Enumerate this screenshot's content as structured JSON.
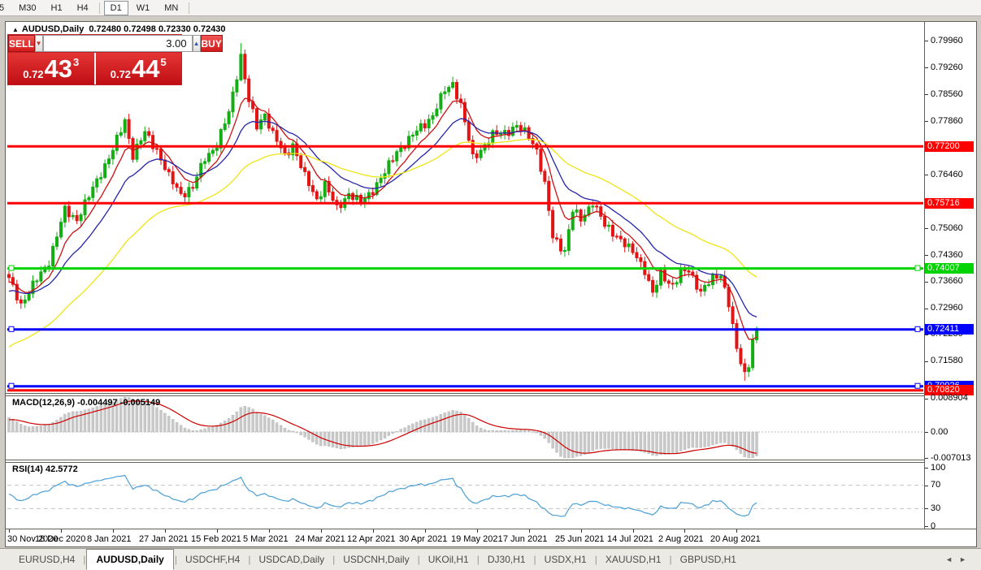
{
  "toolbar": {
    "periods": [
      {
        "label": "5",
        "active": false,
        "sep_after": false
      },
      {
        "label": "M30",
        "active": false,
        "sep_after": false
      },
      {
        "label": "H1",
        "active": false,
        "sep_after": false
      },
      {
        "label": "H4",
        "active": false,
        "sep_after": true
      },
      {
        "label": "D1",
        "active": true,
        "sep_after": false
      },
      {
        "label": "W1",
        "active": false,
        "sep_after": false
      },
      {
        "label": "MN",
        "active": false,
        "sep_after": true
      }
    ]
  },
  "chart": {
    "collapse_icon": "▲",
    "symbol_title": "AUDUSD,Daily",
    "ohlc": "0.72480 0.72498 0.72330 0.72430",
    "trade_panel": {
      "sell_label": "SELL",
      "buy_label": "BUY",
      "volume": "3.00",
      "volume_down_glyph": "▼",
      "volume_up_glyph": "▲",
      "sell_price": {
        "prefix": "0.72",
        "big": "43",
        "sup": "3"
      },
      "buy_price": {
        "prefix": "0.72",
        "big": "44",
        "sup": "5"
      }
    },
    "y_axis_ticks": [
      "0.79960",
      "0.79260",
      "0.78560",
      "0.77860",
      "0.76460",
      "0.75060",
      "0.74360",
      "0.73660",
      "0.72960",
      "0.72280",
      "0.71580"
    ],
    "levels": [
      {
        "label": "0.77200",
        "price": 0.772,
        "color": "#ff0000",
        "thickness": 3,
        "markers": false
      },
      {
        "label": "0.75716",
        "price": 0.75716,
        "color": "#ff0000",
        "thickness": 3,
        "markers": false
      },
      {
        "label": "0.74007",
        "price": 0.74007,
        "color": "#00d400",
        "thickness": 3,
        "markers": true
      },
      {
        "label": "0.72411",
        "price": 0.72411,
        "color": "#0000ff",
        "thickness": 3,
        "markers": true
      },
      {
        "label": "0.70926",
        "price": 0.70926,
        "color": "#0000ff",
        "thickness": 3,
        "markers": true
      },
      {
        "label": "0.70820",
        "price": 0.7082,
        "color": "#ff0000",
        "thickness": 3,
        "markers": false
      }
    ]
  },
  "macd": {
    "name": "MACD(12,26,9)",
    "value1": "-0.004497",
    "value2": "-0.005149",
    "ticks": [
      {
        "text": "0.008904",
        "value": 0.008904
      },
      {
        "text": "0.00",
        "value": 0
      },
      {
        "text": "-0.007013",
        "value": -0.007013
      }
    ]
  },
  "rsi": {
    "name": "RSI(14)",
    "value": "42.5772",
    "ticks": [
      {
        "text": "100",
        "value": 100
      },
      {
        "text": "70",
        "value": 70
      },
      {
        "text": "30",
        "value": 30
      },
      {
        "text": "0",
        "value": 0
      }
    ]
  },
  "x_axis": {
    "labels": [
      {
        "text": "30 Nov 2020",
        "index": 0
      },
      {
        "text": "18 Dec 2020",
        "index": 13
      },
      {
        "text": "8 Jan 2021",
        "index": 26
      },
      {
        "text": "27 Jan 2021",
        "index": 39
      },
      {
        "text": "15 Feb 2021",
        "index": 52
      },
      {
        "text": "5 Mar 2021",
        "index": 65
      },
      {
        "text": "24 Mar 2021",
        "index": 78
      },
      {
        "text": "12 Apr 2021",
        "index": 91
      },
      {
        "text": "30 Apr 2021",
        "index": 104
      },
      {
        "text": "19 May 2021",
        "index": 117
      },
      {
        "text": "7 Jun 2021",
        "index": 130
      },
      {
        "text": "25 Jun 2021",
        "index": 143
      },
      {
        "text": "14 Jul 2021",
        "index": 156
      },
      {
        "text": "2 Aug 2021",
        "index": 169
      },
      {
        "text": "20 Aug 2021",
        "index": 182
      }
    ]
  },
  "tabs": {
    "separator": "|",
    "nav_left": "◄",
    "nav_right": "►",
    "items": [
      {
        "label": "EURUSD,H4",
        "active": false
      },
      {
        "label": "AUDUSD,Daily",
        "active": true
      },
      {
        "label": "USDCHF,H4",
        "active": false
      },
      {
        "label": "USDCAD,Daily",
        "active": false
      },
      {
        "label": "USDCNH,Daily",
        "active": false
      },
      {
        "label": "UKOil,H1",
        "active": false
      },
      {
        "label": "DJ30,H1",
        "active": false
      },
      {
        "label": "USDX,H1",
        "active": false
      },
      {
        "label": "XAUUSD,H1",
        "active": false
      },
      {
        "label": "GBPUSD,H1",
        "active": false
      }
    ]
  },
  "chart_data": {
    "type": "candlestick",
    "symbol": "AUDUSD",
    "timeframe": "Daily",
    "current_ohlc": {
      "open": 0.7248,
      "high": 0.72498,
      "low": 0.7233,
      "close": 0.7243
    },
    "price_axis": {
      "min": 0.70749,
      "max": 0.80329
    },
    "num_candles": 188,
    "close_keyframes": [
      [
        0,
        0.7372
      ],
      [
        3,
        0.7308
      ],
      [
        6,
        0.7355
      ],
      [
        10,
        0.742
      ],
      [
        14,
        0.7552
      ],
      [
        17,
        0.753
      ],
      [
        20,
        0.7588
      ],
      [
        23,
        0.7652
      ],
      [
        26,
        0.771
      ],
      [
        29,
        0.7788
      ],
      [
        31,
        0.7698
      ],
      [
        34,
        0.7755
      ],
      [
        37,
        0.7712
      ],
      [
        40,
        0.764
      ],
      [
        43,
        0.7596
      ],
      [
        46,
        0.7612
      ],
      [
        49,
        0.769
      ],
      [
        52,
        0.7724
      ],
      [
        55,
        0.7808
      ],
      [
        58,
        0.7958
      ],
      [
        60,
        0.7838
      ],
      [
        62,
        0.7772
      ],
      [
        64,
        0.7806
      ],
      [
        66,
        0.7752
      ],
      [
        69,
        0.7695
      ],
      [
        71,
        0.7726
      ],
      [
        74,
        0.764
      ],
      [
        77,
        0.7582
      ],
      [
        79,
        0.7622
      ],
      [
        82,
        0.7556
      ],
      [
        85,
        0.7598
      ],
      [
        88,
        0.757
      ],
      [
        91,
        0.7608
      ],
      [
        94,
        0.765
      ],
      [
        97,
        0.7708
      ],
      [
        100,
        0.7736
      ],
      [
        103,
        0.7772
      ],
      [
        106,
        0.78
      ],
      [
        109,
        0.7866
      ],
      [
        111,
        0.7886
      ],
      [
        113,
        0.7828
      ],
      [
        116,
        0.769
      ],
      [
        118,
        0.7712
      ],
      [
        121,
        0.7748
      ],
      [
        124,
        0.7758
      ],
      [
        127,
        0.7772
      ],
      [
        130,
        0.7748
      ],
      [
        132,
        0.7712
      ],
      [
        134,
        0.7618
      ],
      [
        136,
        0.7482
      ],
      [
        139,
        0.7448
      ],
      [
        141,
        0.7552
      ],
      [
        143,
        0.7528
      ],
      [
        146,
        0.7576
      ],
      [
        149,
        0.7512
      ],
      [
        152,
        0.7488
      ],
      [
        155,
        0.7452
      ],
      [
        157,
        0.7432
      ],
      [
        159,
        0.7398
      ],
      [
        161,
        0.7334
      ],
      [
        163,
        0.7384
      ],
      [
        166,
        0.7358
      ],
      [
        168,
        0.7388
      ],
      [
        170,
        0.7394
      ],
      [
        173,
        0.7342
      ],
      [
        176,
        0.7372
      ],
      [
        178,
        0.7386
      ],
      [
        180,
        0.7312
      ],
      [
        182,
        0.7186
      ],
      [
        184,
        0.7122
      ],
      [
        185,
        0.7152
      ],
      [
        186,
        0.7218
      ],
      [
        187,
        0.7243
      ]
    ],
    "spike_high": {
      "index": 58,
      "price": 0.799
    },
    "spike_low": {
      "index": 184,
      "price": 0.7107
    },
    "horizontal_levels": [
      0.772,
      0.75716,
      0.74007,
      0.72411,
      0.70926,
      0.7082
    ],
    "moving_averages": [
      {
        "name": "fast-ma",
        "color": "#cc1111",
        "ema_period": 8,
        "seed_offset": -0.0015
      },
      {
        "name": "medium-ma",
        "color": "#2525a8",
        "ema_period": 18,
        "seed_offset": -0.004
      },
      {
        "name": "slow-ma",
        "color": "#efe414",
        "ema_period": 46,
        "seed_offset": -0.019
      }
    ],
    "macd": {
      "params": [
        12,
        26,
        9
      ],
      "current": -0.004497,
      "signal": -0.005149,
      "scale_max": 0.008904,
      "scale_min": -0.007013
    },
    "rsi": {
      "period": 14,
      "current": 42.5772,
      "levels": [
        70,
        30
      ],
      "scale": [
        0,
        100
      ]
    },
    "colors": {
      "bull": "#14ad14",
      "bear": "#e21414",
      "macd_hist": "#c9c9c9",
      "macd_signal": "#cc0000",
      "rsi_line": "#4a9fd6",
      "rsi_levels_dash": "#c2c2c2"
    }
  }
}
